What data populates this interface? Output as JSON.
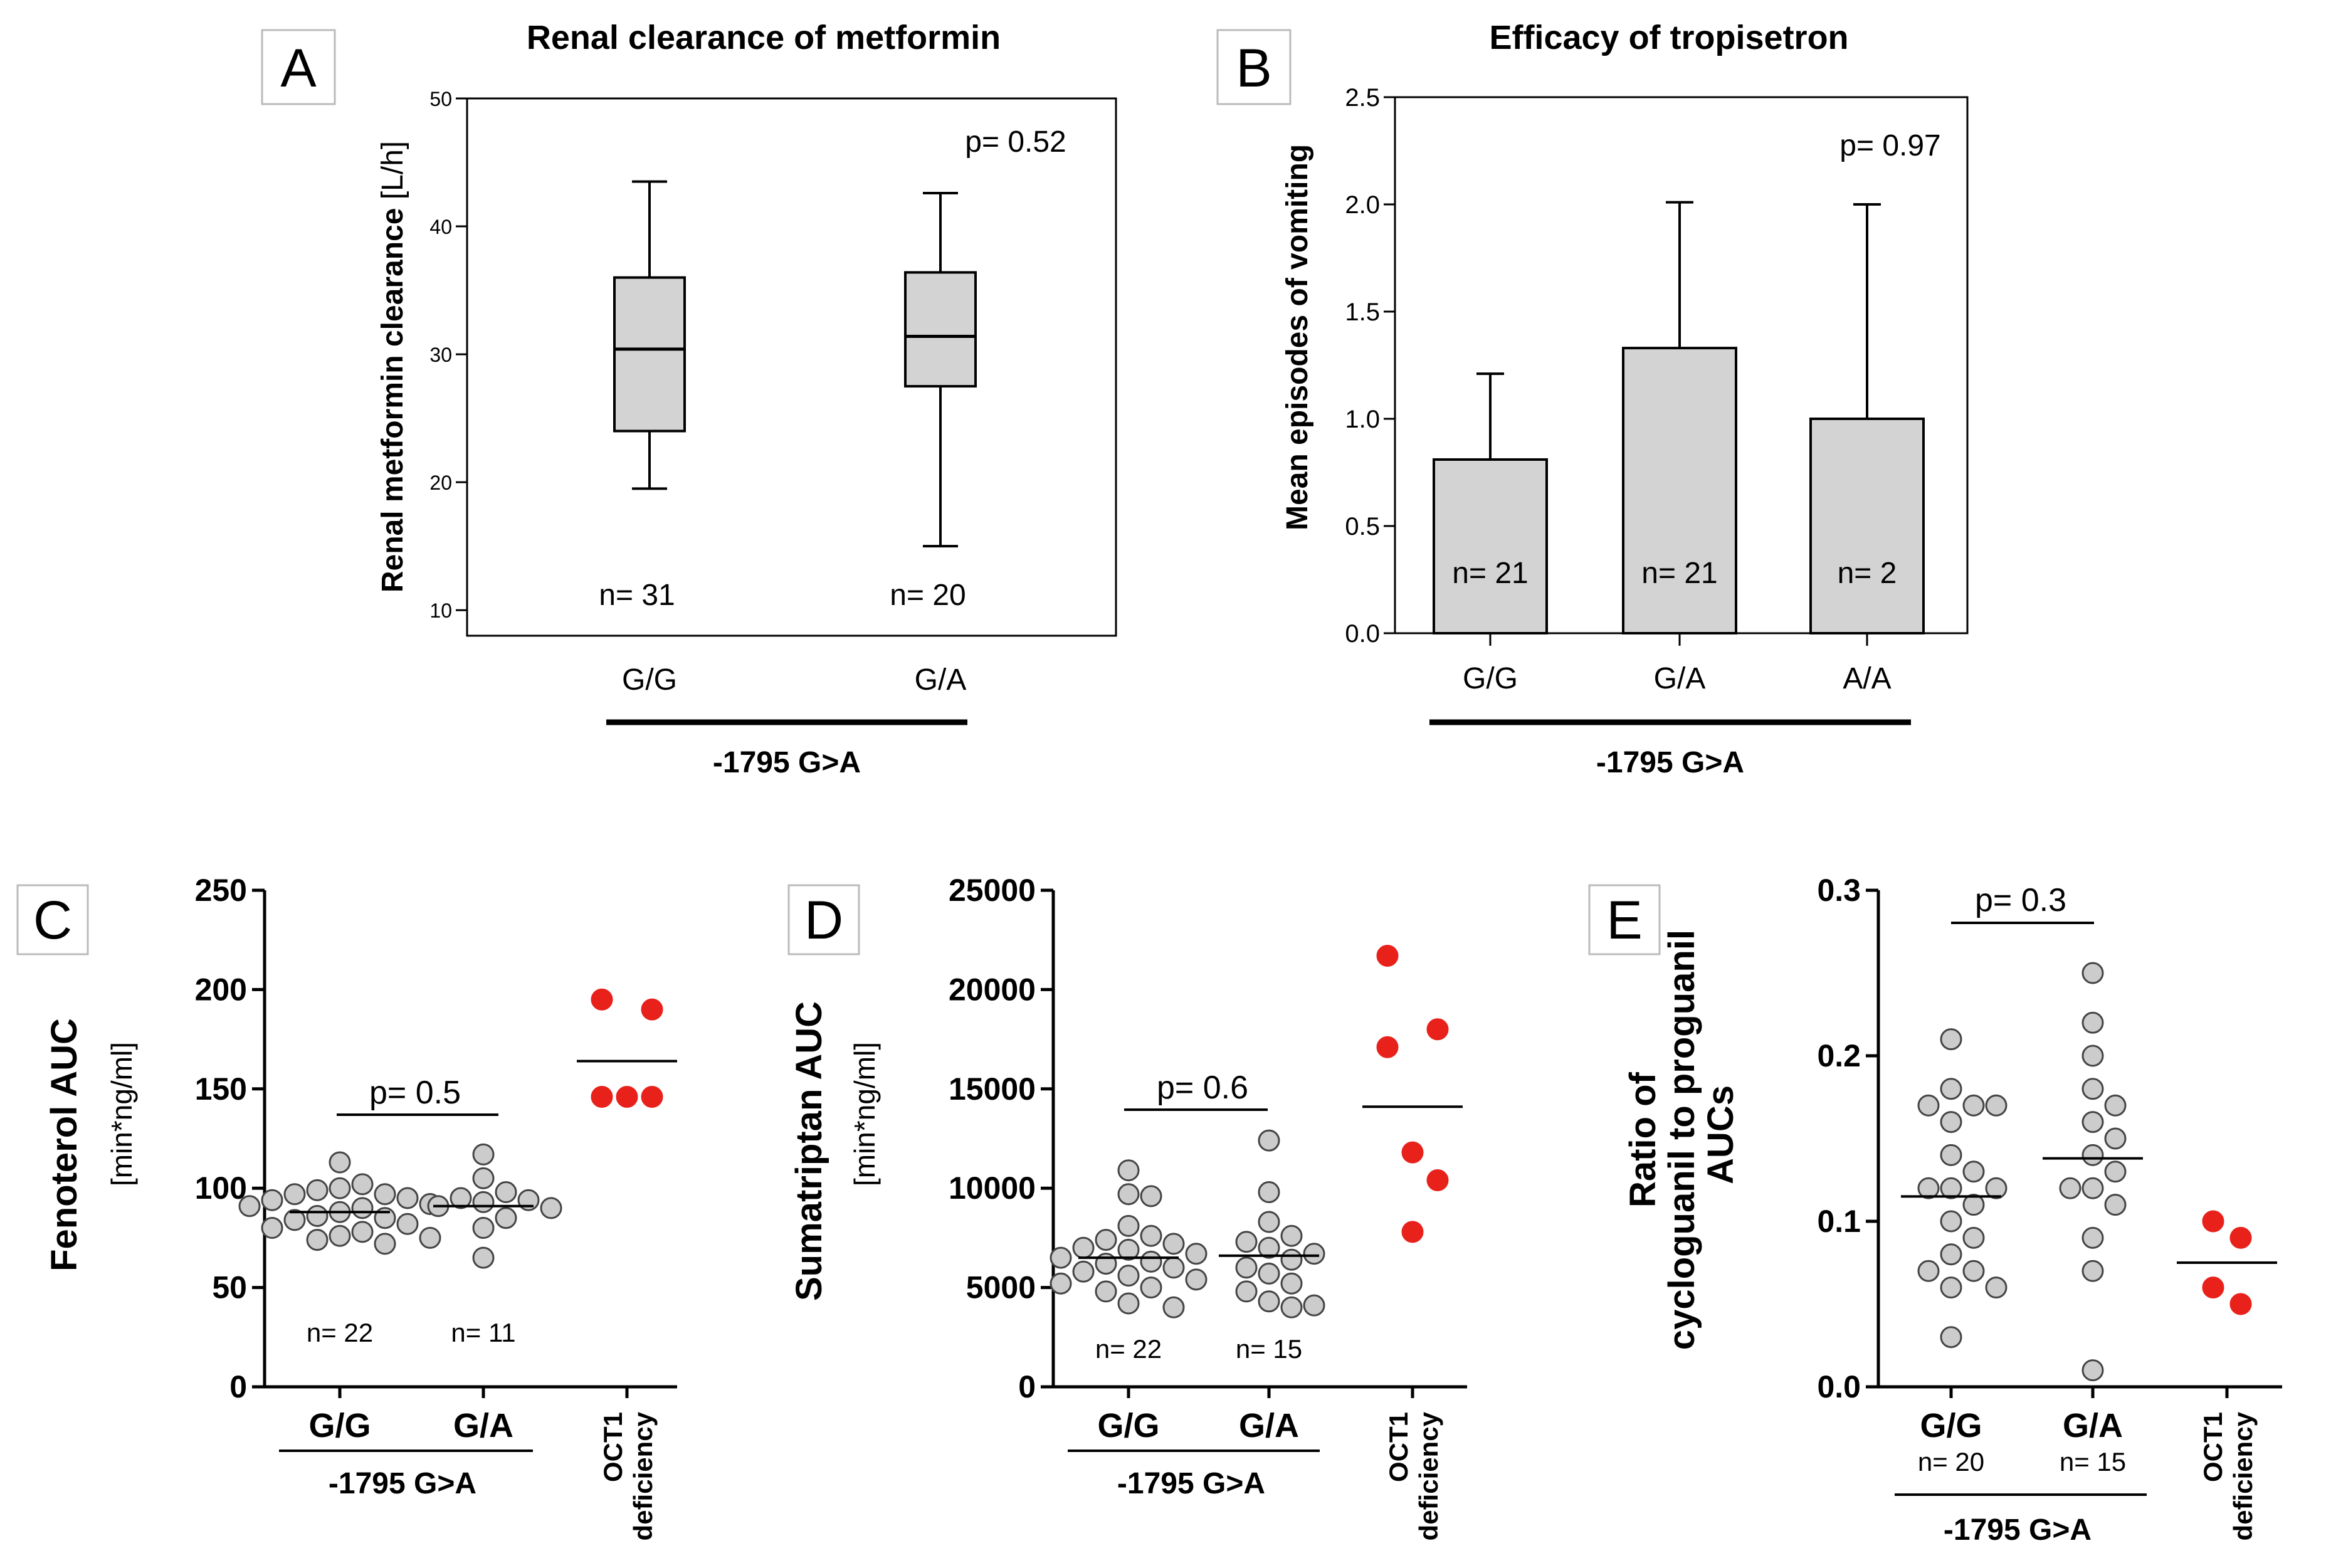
{
  "colors": {
    "box_fill": "#d3d3d3",
    "point_fill": "#cccccc",
    "oct1_fill": "#e8211b",
    "ink": "#000000"
  },
  "chart_data": [
    {
      "id": "A",
      "type": "box",
      "panel_label": "A",
      "title": "Renal clearance of metformin",
      "ylabel": "Renal metformin clearance",
      "ylabel_unit": "[L/h]",
      "ylim": [
        8,
        50
      ],
      "yticks": [
        10,
        20,
        30,
        40,
        50
      ],
      "categories": [
        "G/G",
        "G/A"
      ],
      "boxes": [
        {
          "category": "G/G",
          "whisker_low": 19.5,
          "q1": 24,
          "median": 30.4,
          "q3": 36,
          "whisker_high": 43.5,
          "n_label": "n= 31"
        },
        {
          "category": "G/A",
          "whisker_low": 15,
          "q1": 27.5,
          "median": 31.4,
          "q3": 36.4,
          "whisker_high": 42.6,
          "n_label": "n= 20"
        }
      ],
      "p_value": "p= 0.52",
      "group_label": "-1795 G>A"
    },
    {
      "id": "B",
      "type": "bar",
      "panel_label": "B",
      "title": "Efficacy of tropisetron",
      "ylabel": "Mean episodes of vomiting",
      "ylim": [
        0,
        2.5
      ],
      "yticks": [
        "0.0",
        "0.5",
        "1.0",
        "1.5",
        "2.0",
        "2.5"
      ],
      "categories": [
        "G/G",
        "G/A",
        "A/A"
      ],
      "values": [
        0.81,
        1.33,
        1.0
      ],
      "error_upper": [
        1.21,
        2.01,
        2.0
      ],
      "n_labels": [
        "n= 21",
        "n= 21",
        "n= 2"
      ],
      "p_value": "p= 0.97",
      "group_label": "-1795 G>A"
    },
    {
      "id": "C",
      "type": "scatter",
      "panel_label": "C",
      "ylabel": "Fenoterol AUC",
      "ylabel_unit": "[min*ng/ml]",
      "ylim": [
        0,
        250
      ],
      "yticks": [
        0,
        50,
        100,
        150,
        200,
        250
      ],
      "categories": [
        "G/G",
        "G/A",
        "OCT1 deficiency"
      ],
      "category_lines": [
        [
          "G/G"
        ],
        [
          "G/A"
        ],
        [
          "OCT1",
          "deficiency"
        ]
      ],
      "groups": [
        {
          "category": "G/G",
          "mean": 88,
          "n_label": "n= 22",
          "points": [
            113,
            102,
            100,
            99,
            97,
            97,
            95,
            94,
            92,
            91,
            90,
            88,
            86,
            85,
            84,
            82,
            80,
            78,
            76,
            75,
            74,
            72
          ]
        },
        {
          "category": "G/A",
          "mean": 91,
          "n_label": "n= 11",
          "points": [
            117,
            105,
            98,
            95,
            94,
            93,
            91,
            90,
            85,
            80,
            65
          ]
        },
        {
          "category": "OCT1 deficiency",
          "mean": 164,
          "n_label": "",
          "points": [
            195,
            190,
            146,
            146,
            146
          ]
        }
      ],
      "p_value": "p= 0.5",
      "group_label": "-1795 G>A"
    },
    {
      "id": "D",
      "type": "scatter",
      "panel_label": "D",
      "ylabel": "Sumatriptan AUC",
      "ylabel_unit": "[min*ng/ml]",
      "ylim": [
        0,
        25000
      ],
      "yticks": [
        0,
        5000,
        10000,
        15000,
        20000,
        25000
      ],
      "categories": [
        "G/G",
        "G/A",
        "OCT1 deficiency"
      ],
      "category_lines": [
        [
          "G/G"
        ],
        [
          "G/A"
        ],
        [
          "OCT1",
          "deficiency"
        ]
      ],
      "groups": [
        {
          "category": "G/G",
          "mean": 6500,
          "n_label": "n= 22",
          "points": [
            10900,
            9600,
            9700,
            8100,
            7600,
            7400,
            7200,
            7000,
            6900,
            6700,
            6500,
            6300,
            6200,
            6000,
            5800,
            5600,
            5400,
            5200,
            5000,
            4800,
            4200,
            4000
          ]
        },
        {
          "category": "G/A",
          "mean": 6600,
          "n_label": "n= 15",
          "points": [
            12400,
            9800,
            8300,
            7600,
            7300,
            7000,
            6700,
            6400,
            6000,
            5700,
            5200,
            4800,
            4300,
            4100,
            4000
          ]
        },
        {
          "category": "OCT1 deficiency",
          "mean": 14100,
          "n_label": "",
          "points": [
            21700,
            18000,
            17100,
            11800,
            10400,
            7800
          ]
        }
      ],
      "p_value": "p= 0.6",
      "group_label": "-1795 G>A"
    },
    {
      "id": "E",
      "type": "scatter",
      "panel_label": "E",
      "ylabel": "Ratio of",
      "ylabel_line2": "cycloguanil to proguanil",
      "ylabel_line3": "AUCs",
      "ylim": [
        0,
        0.3
      ],
      "yticks": [
        "0.0",
        "0.1",
        "0.2",
        "0.3"
      ],
      "categories": [
        "G/G",
        "G/A",
        "OCT1 deficiency"
      ],
      "category_lines": [
        [
          "G/G"
        ],
        [
          "G/A"
        ],
        [
          "OCT1",
          "deficiency"
        ]
      ],
      "groups": [
        {
          "category": "G/G",
          "mean": 0.115,
          "n_label": "n= 20",
          "points": [
            0.21,
            0.18,
            0.17,
            0.17,
            0.17,
            0.16,
            0.14,
            0.13,
            0.12,
            0.12,
            0.12,
            0.11,
            0.1,
            0.09,
            0.08,
            0.07,
            0.07,
            0.06,
            0.06,
            0.03
          ]
        },
        {
          "category": "G/A",
          "mean": 0.138,
          "n_label": "n= 15",
          "points": [
            0.25,
            0.22,
            0.2,
            0.18,
            0.17,
            0.16,
            0.15,
            0.14,
            0.13,
            0.12,
            0.12,
            0.11,
            0.09,
            0.07,
            0.01
          ]
        },
        {
          "category": "OCT1 deficiency",
          "mean": 0.075,
          "n_label": "",
          "points": [
            0.1,
            0.09,
            0.06,
            0.05
          ]
        }
      ],
      "p_value": "p= 0.3",
      "group_label": "-1795 G>A"
    }
  ]
}
